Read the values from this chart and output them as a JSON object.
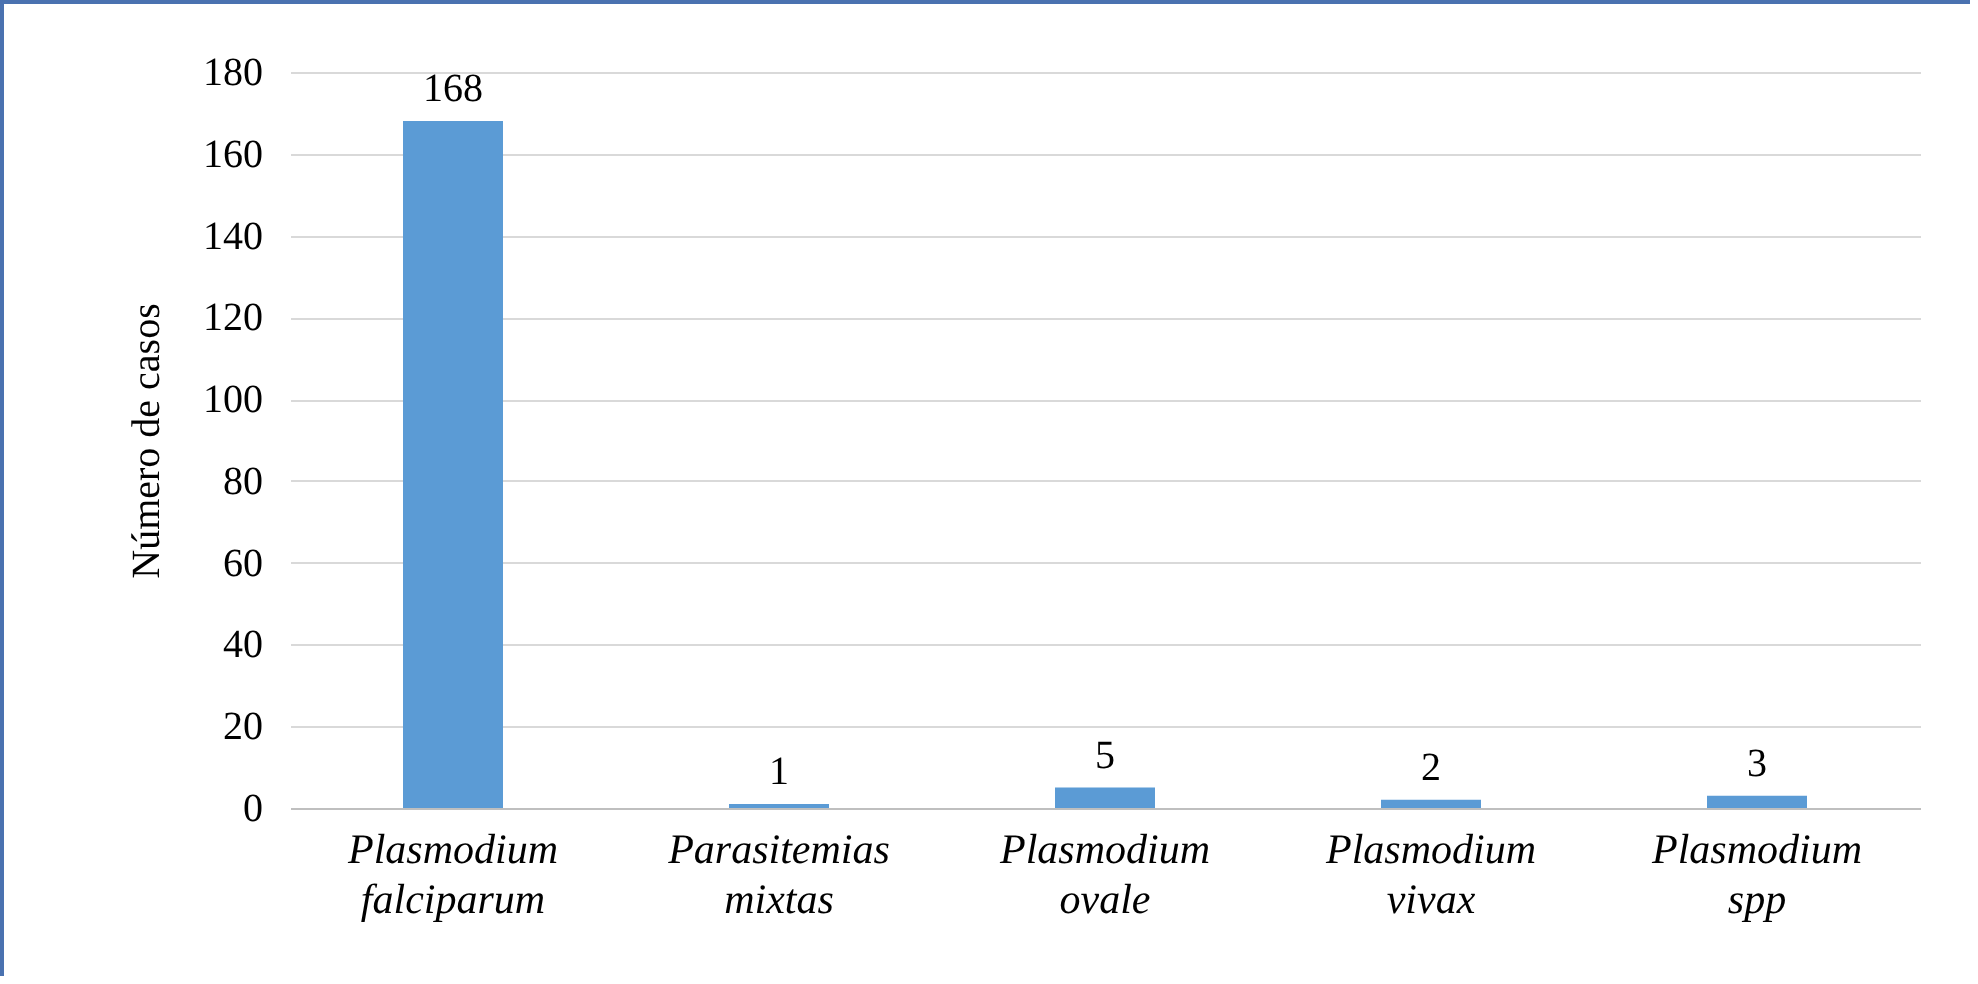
{
  "chart_data": {
    "type": "bar",
    "ylabel": "Número de casos",
    "categories": [
      "Plasmodium falciparum",
      "Parasitemias mixtas",
      "Plasmodium ovale",
      "Plasmodium vivax",
      "Plasmodium spp"
    ],
    "values": [
      168,
      1,
      5,
      2,
      3
    ],
    "color": "#5b9bd5",
    "ylim": [
      0,
      180
    ],
    "yticks": [
      0,
      20,
      40,
      60,
      80,
      100,
      120,
      140,
      160,
      180
    ],
    "grid": "y",
    "data_labels": true
  }
}
